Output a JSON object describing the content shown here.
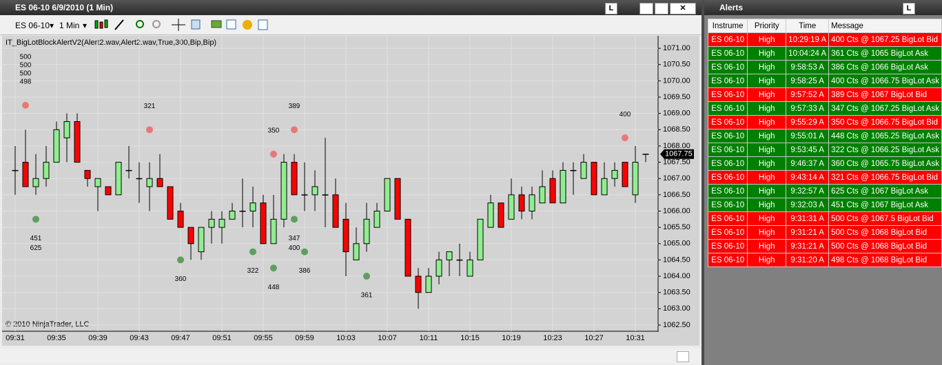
{
  "window": {
    "title": "ES 06-10  6/9/2010 (1 Min)",
    "lock_button": "L",
    "instrument": "ES 06-10",
    "interval": "1 Min"
  },
  "chart_data": {
    "type": "candlestick",
    "indicator": "IT_BigLotBlockAlertV2(Alert2.wav,Alert2.wav,True,300,Bip,Bip)",
    "copyright": "© 2010 NinjaTrader, LLC",
    "categories": [
      "09:31",
      null,
      null,
      null,
      "09:35",
      null,
      null,
      null,
      "09:39",
      null,
      null,
      null,
      "09:43",
      null,
      null,
      null,
      "09:47",
      null,
      null,
      null,
      "09:51",
      null,
      null,
      null,
      "09:55",
      null,
      null,
      null,
      "09:59",
      null,
      null,
      null,
      "10:03",
      null,
      null,
      null,
      "10:07",
      null,
      null,
      null,
      "10:11",
      null,
      null,
      null,
      "10:15",
      null,
      null,
      null,
      "10:19",
      null,
      null,
      null,
      "10:23",
      null,
      null,
      null,
      "10:27",
      null,
      null,
      null,
      "10:31",
      null
    ],
    "open": [
      1067.25,
      1067.5,
      1066.75,
      1067,
      1067.5,
      1068.25,
      1068.75,
      1067.25,
      1066.75,
      1066.75,
      1066.5,
      1067.25,
      1067,
      1066.75,
      1067,
      1066.75,
      1066,
      1065.5,
      1064.75,
      1065.5,
      1065.5,
      1065.75,
      1066,
      1066,
      1066.25,
      1065,
      1065.75,
      1067.5,
      1066.5,
      1066.5,
      1066.5,
      1066.5,
      1065.75,
      1064.5,
      1065,
      1065.5,
      1066,
      1067,
      1065.75,
      1064,
      1063.5,
      1064,
      1064.5,
      1064.5,
      1064,
      1064.5,
      1065.5,
      1066.25,
      1065.75,
      1066.5,
      1066,
      1066.25,
      1067,
      1066.25,
      1067.25,
      1067,
      1067.5,
      1066.5,
      1067,
      1067.5,
      1066.5,
      1067.75
    ],
    "high": [
      1068,
      1068.5,
      1067.75,
      1068,
      1068.75,
      1069,
      1069,
      1067.25,
      1067,
      1066.75,
      1067.5,
      1068,
      1067.5,
      1067.5,
      1067.75,
      1066.75,
      1066.25,
      1065.5,
      1065.5,
      1066,
      1066,
      1066.25,
      1067,
      1066.75,
      1066.5,
      1066.5,
      1067.75,
      1067.75,
      1067.5,
      1067.25,
      1068.25,
      1067,
      1066.25,
      1065.5,
      1066.25,
      1066.25,
      1067,
      1067,
      1065.75,
      1064.25,
      1064.25,
      1064.75,
      1064.75,
      1065,
      1064.75,
      1065.75,
      1066.5,
      1066.25,
      1067,
      1066.75,
      1066.75,
      1067.25,
      1067.25,
      1067.5,
      1067.5,
      1067.75,
      1067.5,
      1067.5,
      1067.5,
      1067.5,
      1068,
      1067.75
    ],
    "low": [
      1066.5,
      1066.75,
      1066.5,
      1066.75,
      1067.5,
      1067.5,
      1067.5,
      1066.75,
      1066,
      1066.5,
      1066.5,
      1067,
      1066.25,
      1066,
      1066.75,
      1065.75,
      1065.5,
      1064.5,
      1064.5,
      1065,
      1065,
      1065.75,
      1065.5,
      1065.5,
      1065,
      1065,
      1065.5,
      1066.5,
      1066,
      1066,
      1065.5,
      1065.5,
      1064,
      1064.5,
      1064.75,
      1065.5,
      1066,
      1065.75,
      1064,
      1063,
      1063.5,
      1063.75,
      1064,
      1064,
      1064,
      1064.5,
      1065.5,
      1065.5,
      1065.75,
      1065.75,
      1065.75,
      1066.25,
      1066.25,
      1066.25,
      1066.5,
      1067,
      1066.5,
      1066.5,
      1066.75,
      1066.75,
      1066.25,
      1067.5
    ],
    "close": [
      1067.25,
      1066.75,
      1067,
      1067.5,
      1068.5,
      1068.75,
      1067.5,
      1067,
      1067,
      1066.5,
      1067.5,
      1067.25,
      1067,
      1067,
      1066.75,
      1065.75,
      1065.5,
      1065,
      1065.5,
      1065.75,
      1065.75,
      1066,
      1066,
      1066.25,
      1065,
      1065.75,
      1067.5,
      1066.5,
      1066.5,
      1066.75,
      1066.5,
      1065.5,
      1064.75,
      1065,
      1065.75,
      1066,
      1067,
      1065.75,
      1064,
      1063.5,
      1064,
      1064.5,
      1064.75,
      1064.5,
      1064.5,
      1065.75,
      1066.25,
      1065.5,
      1066.5,
      1066,
      1066.5,
      1066.75,
      1066.25,
      1067.25,
      1067.25,
      1067.5,
      1066.5,
      1067,
      1067.25,
      1066.75,
      1067.5,
      1067.75
    ],
    "up_color": "#90ee90",
    "down_color": "#ff0000",
    "markers": [
      {
        "index": 1,
        "price": 1069.25,
        "side": "bid",
        "labels": [
          500,
          500,
          500,
          498
        ]
      },
      {
        "index": 13,
        "price": 1068.5,
        "side": "bid",
        "labels": [
          321
        ]
      },
      {
        "index": 25,
        "price": 1067.75,
        "side": "bid",
        "labels": [
          350
        ]
      },
      {
        "index": 27,
        "price": 1068.5,
        "side": "bid",
        "labels": [
          389
        ]
      },
      {
        "index": 59,
        "price": 1068.25,
        "side": "bid",
        "labels": [
          400
        ]
      },
      {
        "index": 2,
        "price": 1065.75,
        "side": "ask",
        "labels": [
          451,
          625
        ]
      },
      {
        "index": 16,
        "price": 1064.5,
        "side": "ask",
        "labels": [
          360
        ]
      },
      {
        "index": 23,
        "price": 1064.75,
        "side": "ask",
        "labels": [
          322
        ]
      },
      {
        "index": 25,
        "price": 1064.25,
        "side": "ask",
        "labels": [
          448
        ]
      },
      {
        "index": 27,
        "price": 1065.75,
        "side": "ask",
        "labels": [
          347,
          400
        ]
      },
      {
        "index": 28,
        "price": 1064.75,
        "side": "ask",
        "labels": [
          386
        ]
      },
      {
        "index": 34,
        "price": 1064,
        "side": "ask",
        "labels": [
          361
        ]
      }
    ],
    "bid_color": "#e87878",
    "ask_color": "#5f9e5f",
    "last_price": 1067.75,
    "ylim": [
      1062.33,
      1071.32
    ],
    "yticks": [
      {
        "value": 1062.5,
        "label": "1062.50"
      },
      {
        "value": 1063,
        "label": "1063.00"
      },
      {
        "value": 1063.5,
        "label": "1063.50"
      },
      {
        "value": 1064,
        "label": "1064.00"
      },
      {
        "value": 1064.5,
        "label": "1064.50"
      },
      {
        "value": 1065,
        "label": "1065.00"
      },
      {
        "value": 1065.5,
        "label": "1065.50"
      },
      {
        "value": 1066,
        "label": "1066.00"
      },
      {
        "value": 1066.5,
        "label": "1066.50"
      },
      {
        "value": 1067,
        "label": "1067.00"
      },
      {
        "value": 1067.5,
        "label": "1067.50"
      },
      {
        "value": 1068,
        "label": "1068.00"
      },
      {
        "value": 1068.5,
        "label": "1068.50"
      },
      {
        "value": 1069,
        "label": "1069.00"
      },
      {
        "value": 1069.5,
        "label": "1069.50"
      },
      {
        "value": 1070,
        "label": "1070.00"
      },
      {
        "value": 1070.5,
        "label": "1070.50"
      },
      {
        "value": 1071,
        "label": "1071.00"
      }
    ],
    "grid": true
  },
  "alerts": {
    "title": "Alerts",
    "lock_button": "L",
    "header": [
      "Instrume",
      "Priority",
      "Time",
      "Message"
    ],
    "rows": [
      {
        "color": "#ff0000",
        "cells": [
          "ES 06-10",
          "High",
          "10:29:19 A",
          "400 Cts @ 1067.25 BigLot Bid"
        ]
      },
      {
        "color": "#008000",
        "cells": [
          "ES 06-10",
          "High",
          "10:04:24 A",
          "361 Cts @ 1065 BigLot Ask"
        ]
      },
      {
        "color": "#008000",
        "cells": [
          "ES 06-10",
          "High",
          "9:58:53 A",
          "386 Cts @ 1066 BigLot Ask"
        ]
      },
      {
        "color": "#008000",
        "cells": [
          "ES 06-10",
          "High",
          "9:58:25 A",
          "400 Cts @ 1066.75 BigLot Ask"
        ]
      },
      {
        "color": "#ff0000",
        "cells": [
          "ES 06-10",
          "High",
          "9:57:52 A",
          "389 Cts @ 1067 BigLot Bid"
        ]
      },
      {
        "color": "#008000",
        "cells": [
          "ES 06-10",
          "High",
          "9:57:33 A",
          "347 Cts @ 1067.25 BigLot Ask"
        ]
      },
      {
        "color": "#ff0000",
        "cells": [
          "ES 06-10",
          "High",
          "9:55:29 A",
          "350 Cts @ 1066.75 BigLot Bid"
        ]
      },
      {
        "color": "#008000",
        "cells": [
          "ES 06-10",
          "High",
          "9:55:01 A",
          "448 Cts @ 1065.25 BigLot Ask"
        ]
      },
      {
        "color": "#008000",
        "cells": [
          "ES 06-10",
          "High",
          "9:53:45 A",
          "322 Cts @ 1066.25 BigLot Ask"
        ]
      },
      {
        "color": "#008000",
        "cells": [
          "ES 06-10",
          "High",
          "9:46:37 A",
          "360 Cts @ 1065.75 BigLot Ask"
        ]
      },
      {
        "color": "#ff0000",
        "cells": [
          "ES 06-10",
          "High",
          "9:43:14 A",
          "321 Cts @ 1066.75 BigLot Bid"
        ]
      },
      {
        "color": "#008000",
        "cells": [
          "ES 06-10",
          "High",
          "9:32:57 A",
          "625 Cts @ 1067 BigLot Ask"
        ]
      },
      {
        "color": "#008000",
        "cells": [
          "ES 06-10",
          "High",
          "9:32:03 A",
          "451 Cts @ 1067 BigLot Ask"
        ]
      },
      {
        "color": "#ff0000",
        "cells": [
          "ES 06-10",
          "High",
          "9:31:31 A",
          "500 Cts @ 1067.5 BigLot Bid"
        ]
      },
      {
        "color": "#ff0000",
        "cells": [
          "ES 06-10",
          "High",
          "9:31:21 A",
          "500 Cts @ 1068 BigLot Bid"
        ]
      },
      {
        "color": "#ff0000",
        "cells": [
          "ES 06-10",
          "High",
          "9:31:21 A",
          "500 Cts @ 1068 BigLot Bid"
        ]
      },
      {
        "color": "#ff0000",
        "cells": [
          "ES 06-10",
          "High",
          "9:31:20 A",
          "498 Cts @ 1068 BigLot Bid"
        ]
      }
    ]
  }
}
